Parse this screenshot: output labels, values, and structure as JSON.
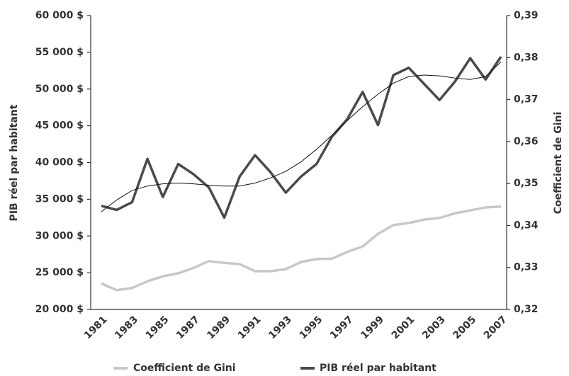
{
  "chart_data": {
    "type": "line",
    "y_label": "PIB réel par habitant",
    "y2_label": "Coefficient de Gini",
    "categories": [
      "1981",
      null,
      "1983",
      null,
      "1985",
      null,
      "1987",
      null,
      "1989",
      null,
      "1991",
      null,
      "1993",
      null,
      "1995",
      null,
      "1997",
      null,
      "1999",
      null,
      "2001",
      null,
      "2003",
      null,
      "2005",
      null,
      "2007"
    ],
    "series": [
      {
        "name": "Coefficient de Gini",
        "color": "#c8c8c8",
        "axis": "y2",
        "values": [
          0.3262,
          0.3246,
          0.3251,
          0.3267,
          0.3279,
          0.3286,
          0.3299,
          0.3315,
          0.3311,
          0.3308,
          0.3291,
          0.3291,
          0.3296,
          0.3313,
          0.332,
          0.3321,
          0.3337,
          0.335,
          0.338,
          0.3401,
          0.3406,
          0.3414,
          0.3418,
          0.3429,
          0.3436,
          0.3443,
          0.3445
        ]
      },
      {
        "name": "PIB réel par habitant",
        "color": "#4a4a4a",
        "values": [
          34100,
          33550,
          34600,
          40500,
          35300,
          39800,
          38400,
          36600,
          32500,
          38100,
          41000,
          38700,
          35900,
          38100,
          39800,
          43500,
          45900,
          49600,
          45100,
          51900,
          52900,
          50700,
          48500,
          51000,
          54200,
          51300,
          54400
        ],
        "trend": [
          33300,
          34900,
          36200,
          36800,
          37100,
          37200,
          37100,
          36900,
          36800,
          36800,
          37200,
          37900,
          38800,
          40100,
          41800,
          43700,
          45700,
          47600,
          49300,
          50800,
          51700,
          51900,
          51800,
          51500,
          51300,
          51700,
          53700
        ],
        "trend_color": "#111111"
      }
    ],
    "ylim": [
      20000,
      60000
    ],
    "yticks": [
      {
        "value": 20000,
        "label": "20 000 $"
      },
      {
        "value": 25000,
        "label": "25 000 $"
      },
      {
        "value": 30000,
        "label": "30 000 $"
      },
      {
        "value": 35000,
        "label": "35 000 $"
      },
      {
        "value": 40000,
        "label": "40 000 $"
      },
      {
        "value": 45000,
        "label": "45 000 $"
      },
      {
        "value": 50000,
        "label": "50 000 $"
      },
      {
        "value": 55000,
        "label": "55 000 $"
      },
      {
        "value": 60000,
        "label": "60 000 $"
      }
    ],
    "y2lim": [
      0.32,
      0.39
    ],
    "y2ticks": [
      {
        "value": 0.32,
        "label": "0,32"
      },
      {
        "value": 0.33,
        "label": "0,33"
      },
      {
        "value": 0.34,
        "label": "0,34"
      },
      {
        "value": 0.35,
        "label": "0,35"
      },
      {
        "value": 0.36,
        "label": "0,36"
      },
      {
        "value": 0.37,
        "label": "0,37"
      },
      {
        "value": 0.38,
        "label": "0,38"
      },
      {
        "value": 0.39,
        "label": "0,39"
      }
    ],
    "legend": "bottom"
  }
}
